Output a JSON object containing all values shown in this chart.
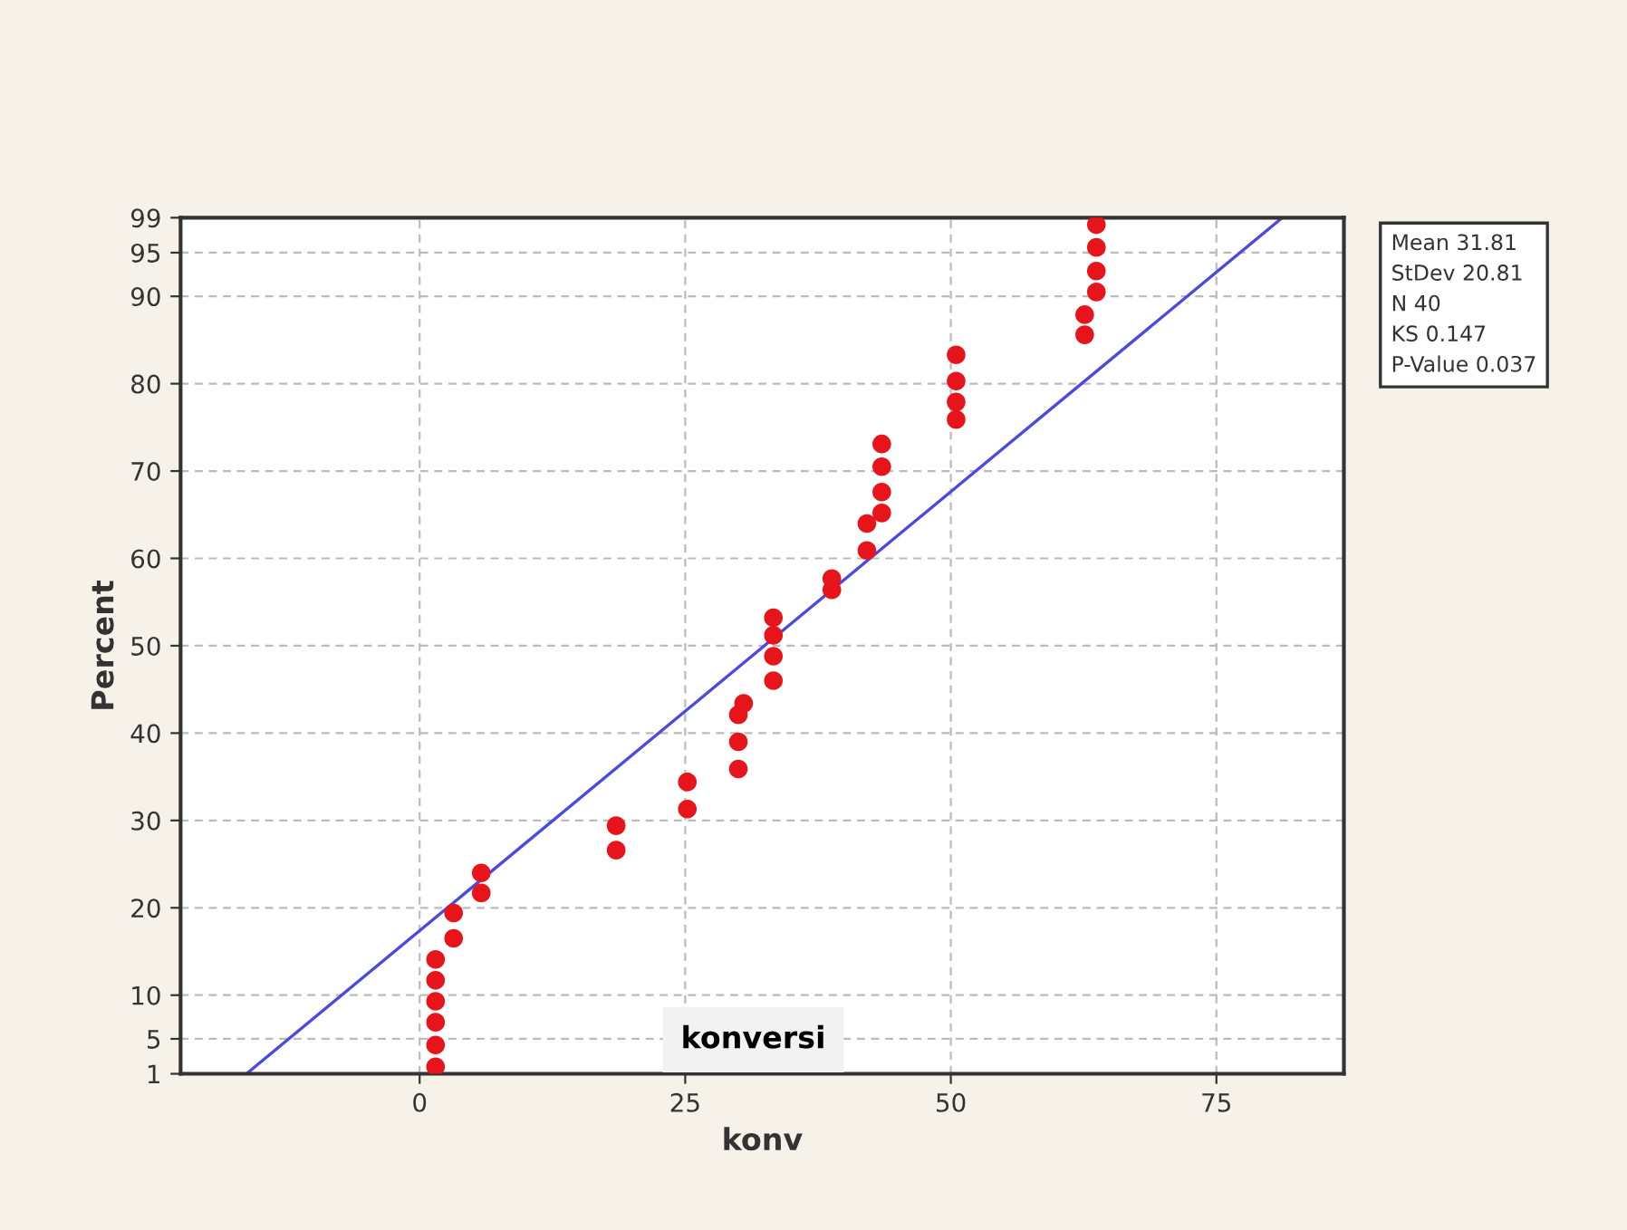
{
  "chart_data": {
    "type": "scatter",
    "xlabel": "konv",
    "ylabel": "Percent",
    "annotations": [
      "konversi",
      "Mean 31.81",
      "StDev 20.81",
      "N 40",
      "KS 0.147",
      "P-Value 0.037"
    ],
    "xlim": [
      -22.5,
      87
    ],
    "xticks": [
      0,
      25,
      50,
      75
    ],
    "ylim": [
      1,
      99
    ],
    "yticks": [
      1,
      5,
      10,
      20,
      30,
      40,
      50,
      60,
      70,
      80,
      90,
      95,
      99
    ],
    "grid": true,
    "marker": "circle",
    "series": [
      {
        "color": "#e8141b",
        "x": [
          1.5,
          1.5,
          1.5,
          1.5,
          1.5,
          1.5,
          3.2,
          3.2,
          5.8,
          5.8,
          18.5,
          18.5,
          25.2,
          25.2,
          30,
          30,
          30,
          30.5,
          33.3,
          33.3,
          33.3,
          33.3,
          38.8,
          38.8,
          42.1,
          42.1,
          43.5,
          43.5,
          43.5,
          43.5,
          50.5,
          50.5,
          50.5,
          50.5,
          62.6,
          62.6,
          63.7,
          63.7,
          63.7,
          63.7
        ],
        "values": [
          1.8,
          4.3,
          6.9,
          9.3,
          11.7,
          14.1,
          16.5,
          19.4,
          21.7,
          24.0,
          26.6,
          29.4,
          31.3,
          34.4,
          35.9,
          39.0,
          42.1,
          43.4,
          46.0,
          48.8,
          51.2,
          53.2,
          56.4,
          57.7,
          60.9,
          64.0,
          65.2,
          67.6,
          70.5,
          73.1,
          75.9,
          77.9,
          80.3,
          83.3,
          85.6,
          87.9,
          90.5,
          92.9,
          95.6,
          98.2
        ]
      },
      {
        "type": "line",
        "color": "#4a4ae0",
        "x": [
          -16.3,
          81.2
        ],
        "values": [
          1,
          99
        ],
        "marker": "none",
        "line_style": "solid"
      }
    ]
  }
}
